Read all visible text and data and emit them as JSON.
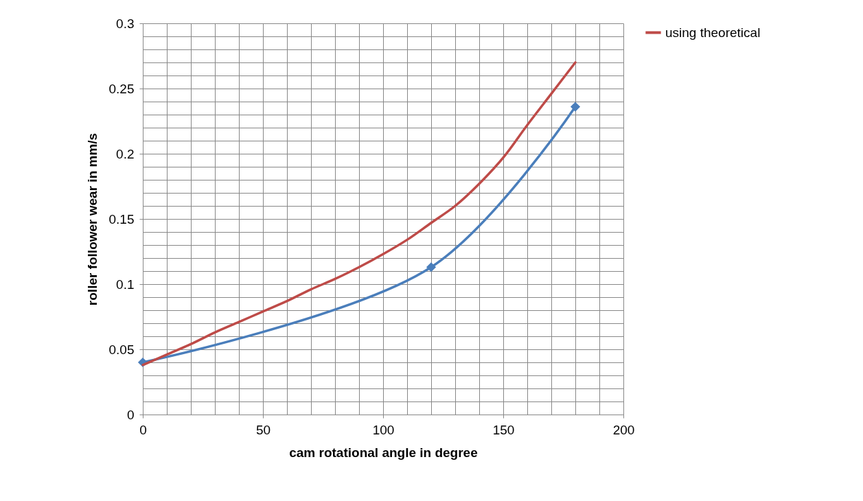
{
  "chart_data": {
    "type": "line",
    "xlabel": "cam rotational angle in degree",
    "ylabel": "roller follower wear in mm/s",
    "xlim": [
      0,
      200
    ],
    "ylim": [
      0,
      0.3
    ],
    "xticks": [
      0,
      {
        "value": 10,
        "label": null
      },
      {
        "value": 20,
        "label": null
      },
      {
        "value": 30,
        "label": null
      },
      {
        "value": 40,
        "label": null
      },
      50,
      {
        "value": 60,
        "label": null
      },
      {
        "value": 70,
        "label": null
      },
      {
        "value": 80,
        "label": null
      },
      {
        "value": 90,
        "label": null
      },
      100,
      {
        "value": 110,
        "label": null
      },
      {
        "value": 120,
        "label": null
      },
      {
        "value": 130,
        "label": null
      },
      {
        "value": 140,
        "label": null
      },
      150,
      {
        "value": 160,
        "label": null
      },
      {
        "value": 170,
        "label": null
      },
      {
        "value": 180,
        "label": null
      },
      {
        "value": 190,
        "label": null
      },
      200
    ],
    "yticks": [
      0,
      {
        "value": 0.01,
        "label": null
      },
      {
        "value": 0.02,
        "label": null
      },
      {
        "value": 0.03,
        "label": null
      },
      {
        "value": 0.04,
        "label": null
      },
      0.05,
      {
        "value": 0.06,
        "label": null
      },
      {
        "value": 0.07,
        "label": null
      },
      {
        "value": 0.08,
        "label": null
      },
      {
        "value": 0.09,
        "label": null
      },
      0.1,
      {
        "value": 0.11,
        "label": null
      },
      {
        "value": 0.12,
        "label": null
      },
      {
        "value": 0.13,
        "label": null
      },
      {
        "value": 0.14,
        "label": null
      },
      0.15,
      {
        "value": 0.16,
        "label": null
      },
      {
        "value": 0.17,
        "label": null
      },
      {
        "value": 0.18,
        "label": null
      },
      {
        "value": 0.19,
        "label": null
      },
      0.2,
      {
        "value": 0.21,
        "label": null
      },
      {
        "value": 0.22,
        "label": null
      },
      {
        "value": 0.23,
        "label": null
      },
      {
        "value": 0.24,
        "label": null
      },
      0.25,
      {
        "value": 0.26,
        "label": null
      },
      {
        "value": 0.27,
        "label": null
      },
      {
        "value": 0.28,
        "label": null
      },
      {
        "value": 0.29,
        "label": null
      },
      0.3
    ],
    "grid": true,
    "legend": "right",
    "marker": "diamond",
    "line_style": "solid",
    "series": [
      {
        "color": "#4a7ebb",
        "x": [
          0,
          120,
          180
        ],
        "values": [
          0.04,
          0.113,
          0.236
        ]
      },
      {
        "name": "using theoretical",
        "color": "#be4b48",
        "marker": "none",
        "x": [
          0,
          10,
          20,
          30,
          40,
          50,
          60,
          70,
          80,
          90,
          100,
          110,
          120,
          130,
          140,
          150,
          160,
          170,
          180
        ],
        "values": [
          0.038,
          0.046,
          0.054,
          0.063,
          0.071,
          0.079,
          0.087,
          0.096,
          0.104,
          0.113,
          0.123,
          0.134,
          0.147,
          0.16,
          0.177,
          0.197,
          0.222,
          0.246,
          0.27
        ]
      }
    ]
  }
}
